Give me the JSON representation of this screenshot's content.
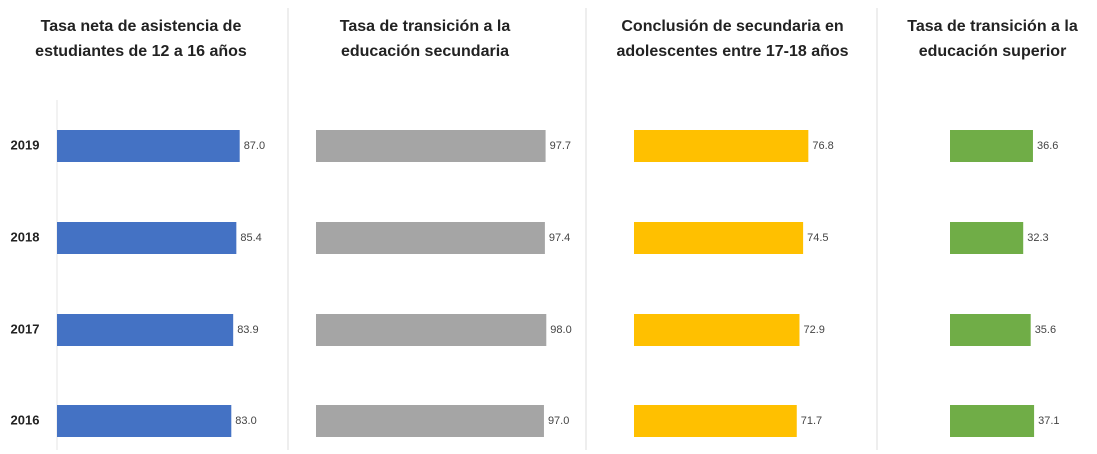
{
  "chart_data": [
    {
      "type": "bar",
      "orientation": "horizontal",
      "title": "Tasa neta de asistencia de estudiantes de 12 a 16 años",
      "categories": [
        "2019",
        "2018",
        "2017",
        "2016"
      ],
      "values": [
        87.0,
        85.4,
        83.9,
        83.0
      ],
      "value_labels": [
        "87.0",
        "85.4",
        "83.9",
        "83.0"
      ],
      "color": "#4472c4",
      "xlim": [
        0,
        100
      ]
    },
    {
      "type": "bar",
      "orientation": "horizontal",
      "title": "Tasa de transición a la educación secundaria",
      "values": [
        97.7,
        97.4,
        98.0,
        97.0
      ],
      "value_labels": [
        "97.7",
        "97.4",
        "98.0",
        "97.0"
      ],
      "color": "#a5a5a5",
      "xlim": [
        0,
        100
      ]
    },
    {
      "type": "bar",
      "orientation": "horizontal",
      "title": "Conclusión de secundaria en adolescentes entre 17-18 años",
      "values": [
        76.8,
        74.5,
        72.9,
        71.7
      ],
      "value_labels": [
        "76.8",
        "74.5",
        "72.9",
        "71.7"
      ],
      "color": "#ffc000",
      "xlim": [
        0,
        100
      ]
    },
    {
      "type": "bar",
      "orientation": "horizontal",
      "title": "Tasa de transición a la educación superior",
      "values": [
        36.6,
        32.3,
        35.6,
        37.1
      ],
      "value_labels": [
        "36.6",
        "32.3",
        "35.6",
        "37.1"
      ],
      "color": "#70ad47",
      "xlim": [
        0,
        60
      ]
    }
  ]
}
